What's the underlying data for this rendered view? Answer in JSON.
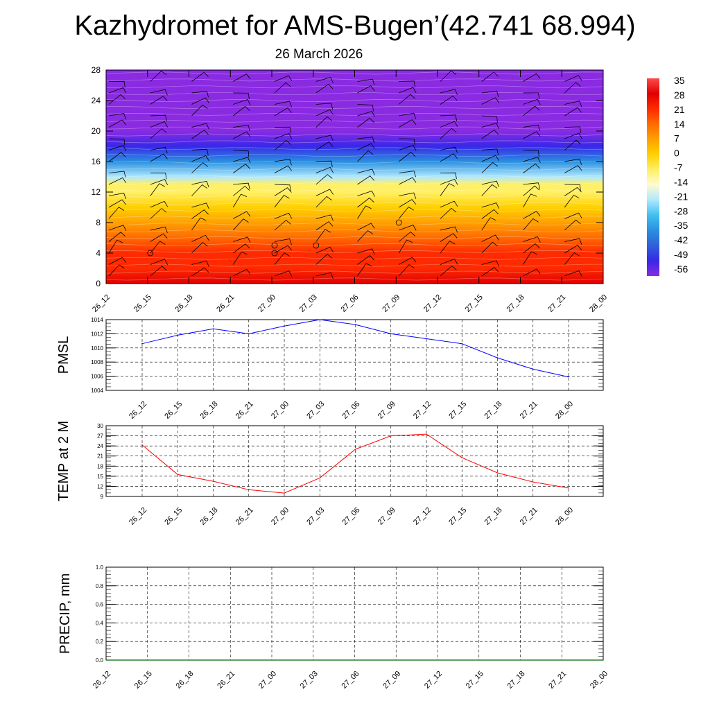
{
  "title": "Kazhydromet for AMS-Bugen’(42.741 68.994)",
  "subtitle": "26 March 2026",
  "colors": {
    "pmsl_line": "#0000ff",
    "temp_line": "#ff0000",
    "precip_line": "#006400",
    "grid": "#000000",
    "colorbar_stops": [
      "#ff4a4a",
      "#e00000",
      "#ff2a00",
      "#ff6a00",
      "#ffa000",
      "#ffd000",
      "#fff066",
      "#fffbd0",
      "#b0e8ff",
      "#40c0f0",
      "#2a90e0",
      "#3060d8",
      "#3828e8",
      "#8a2be2"
    ]
  },
  "chart_data": [
    {
      "type": "heatmap",
      "description_of_fill": "temperature profile with wind barbs",
      "x": [
        "26_12",
        "26_15",
        "26_18",
        "26_21",
        "27_00",
        "27_03",
        "27_06",
        "27_09",
        "27_12",
        "27_15",
        "27_18",
        "27_21",
        "28_00"
      ],
      "y_ticks": [
        0,
        4,
        8,
        12,
        16,
        20,
        24,
        28
      ],
      "ylim": [
        0,
        28
      ],
      "levels": [
        0,
        2,
        4,
        6,
        8,
        10,
        12,
        13,
        14,
        16,
        18,
        20,
        22,
        24,
        26,
        28
      ],
      "temperature_by_level": [
        30,
        24,
        18,
        12,
        6,
        0,
        -6,
        -12,
        -20,
        -36,
        -50,
        -58,
        -60,
        -61,
        -62,
        -62
      ],
      "colorbar_labels": [
        "35",
        "28",
        "21",
        "14",
        "7",
        "0",
        "-7",
        "-14",
        "-21",
        "-28",
        "-35",
        "-42",
        "-49",
        "-56"
      ]
    },
    {
      "type": "line",
      "ylabel": "PMSL",
      "x": [
        "26_12",
        "26_15",
        "26_18",
        "26_21",
        "27_00",
        "27_03",
        "27_06",
        "27_09",
        "27_12",
        "27_15",
        "27_18",
        "27_21",
        "28_00"
      ],
      "values": [
        1010.6,
        1011.8,
        1012.7,
        1012.0,
        1013.1,
        1014.0,
        1013.3,
        1012.0,
        1011.3,
        1010.6,
        1008.6,
        1007.0,
        1005.9
      ],
      "y_ticks": [
        1004,
        1006,
        1008,
        1010,
        1012,
        1014
      ],
      "ylim": [
        1004,
        1014
      ],
      "grid": true
    },
    {
      "type": "line",
      "ylabel": "TEMP at 2 M",
      "x": [
        "26_12",
        "26_15",
        "26_18",
        "26_21",
        "27_00",
        "27_03",
        "27_06",
        "27_09",
        "27_12",
        "27_15",
        "27_18",
        "27_21",
        "28_00"
      ],
      "values": [
        24.3,
        15.5,
        13.5,
        11.0,
        10.0,
        14.5,
        23.0,
        27.0,
        27.5,
        20.5,
        16.0,
        13.3,
        11.5
      ],
      "y_ticks": [
        9,
        12,
        15,
        18,
        21,
        24,
        27,
        30
      ],
      "ylim": [
        9,
        30
      ],
      "grid": true
    },
    {
      "type": "line",
      "ylabel": "PRECIP, mm",
      "x": [
        "26_12",
        "26_15",
        "26_18",
        "26_21",
        "27_00",
        "27_03",
        "27_06",
        "27_09",
        "27_12",
        "27_15",
        "27_18",
        "27_21",
        "28_00"
      ],
      "values": [
        0,
        0,
        0,
        0,
        0,
        0,
        0,
        0,
        0,
        0,
        0,
        0,
        0
      ],
      "y_ticks": [
        "0.0",
        "0.2",
        "0.4",
        "0.6",
        "0.8",
        "1.0"
      ],
      "ylim": [
        0,
        1
      ],
      "grid": true
    }
  ]
}
